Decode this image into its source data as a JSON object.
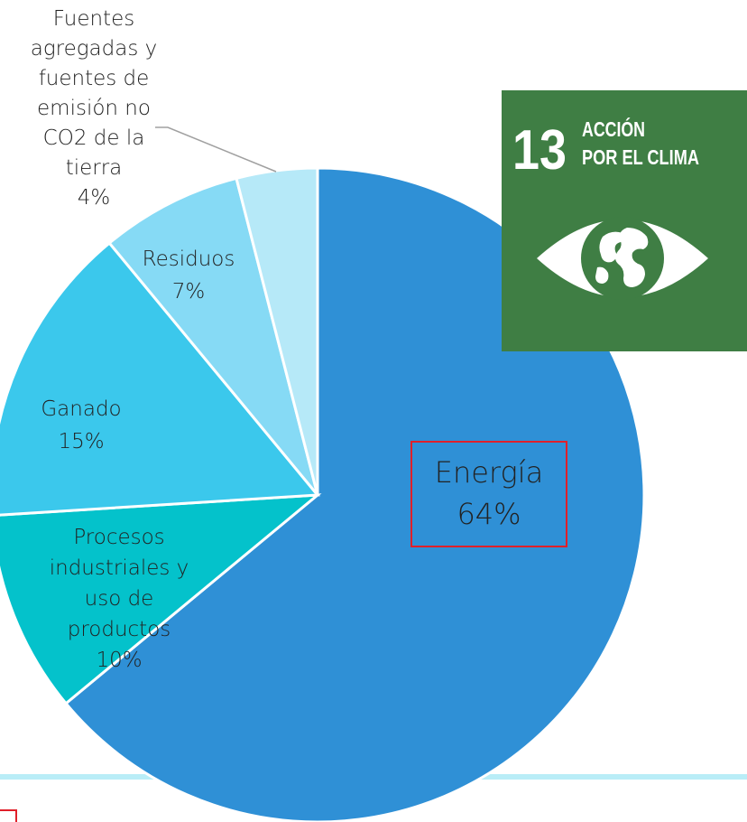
{
  "chart_data": {
    "type": "pie",
    "title": "",
    "slices": [
      {
        "label": "Energía",
        "value": 64,
        "pct_label": "64%",
        "color": "#2F90D6"
      },
      {
        "label": "Procesos industriales y uso de productos",
        "lines": [
          "Procesos",
          "industriales y",
          "uso de",
          "productos"
        ],
        "value": 10,
        "pct_label": "10%",
        "color": "#04C2CB"
      },
      {
        "label": "Ganado",
        "value": 15,
        "pct_label": "15%",
        "color": "#3BC8EC"
      },
      {
        "label": "Residuos",
        "value": 7,
        "pct_label": "7%",
        "color": "#86DAF5"
      },
      {
        "label": "Fuentes agregadas y fuentes de emisión no CO2 de la tierra",
        "lines": [
          "Fuentes",
          "agregadas y",
          "fuentes de",
          "emisión no",
          "CO2 de la",
          "tierra"
        ],
        "value": 4,
        "pct_label": "4%",
        "color": "#B6E9F8"
      }
    ],
    "highlight_slice": "Energía",
    "highlight_color": "#E0202A",
    "label_color": "#222222"
  },
  "sdg_badge": {
    "number": "13",
    "title_line1": "ACCIÓN",
    "title_line2": "POR EL CLIMA",
    "background": "#3F7E44",
    "icon": "eye-globe-icon"
  },
  "divider_color": "#B9EDF7"
}
